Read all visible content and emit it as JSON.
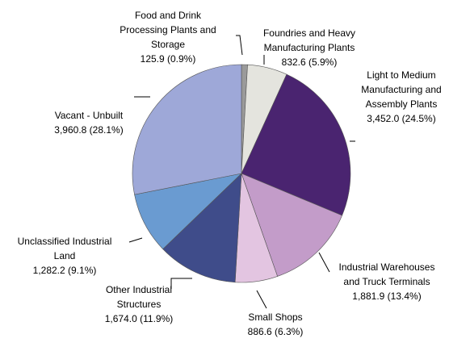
{
  "chart_data": {
    "type": "pie",
    "categories": [
      "Food and Drink\nProcessing Plants and\nStorage",
      "Foundries and Heavy\nManufacturing Plants",
      "Light to Medium\nManufacturing and\nAssembly Plants",
      "Industrial Warehouses\nand Truck Terminals",
      "Small Shops",
      "Other Industrial\nStructures",
      "Unclassified Industrial\nLand",
      "Vacant - Unbuilt"
    ],
    "values": [
      125.9,
      832.6,
      3452.0,
      1881.9,
      886.6,
      1674.0,
      1282.2,
      3960.8
    ],
    "value_labels": [
      "125.9 (0.9%)",
      "832.6 (5.9%)",
      "3,452.0 (24.5%)",
      "1,881.9 (13.4%)",
      "886.6 (6.3%)",
      "1,674.0 (11.9%)",
      "1,282.2 (9.1%)",
      "3,960.8 (28.1%)"
    ],
    "colors": [
      "#9a9a9a",
      "#e4e4de",
      "#4a2470",
      "#c39cc9",
      "#e3c5e1",
      "#3f4c8a",
      "#6a9bd1",
      "#9ea8d8"
    ]
  }
}
